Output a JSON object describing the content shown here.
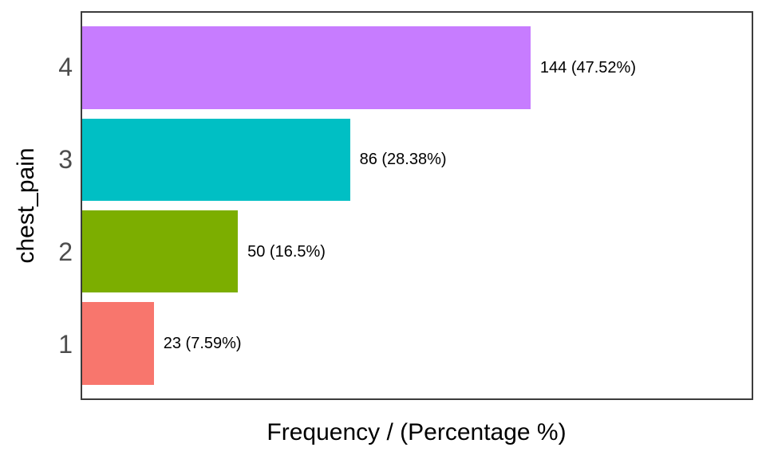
{
  "chart_data": {
    "type": "bar",
    "orientation": "horizontal",
    "title": "",
    "xlabel": "Frequency / (Percentage %)",
    "ylabel": "chest_pain",
    "categories": [
      "4",
      "3",
      "2",
      "1"
    ],
    "values": [
      144,
      86,
      50,
      23
    ],
    "percentages": [
      47.52,
      28.38,
      16.5,
      7.59
    ],
    "bar_labels": [
      "144 (47.52%)",
      "86 (28.38%)",
      "50 (16.5%)",
      "23 (7.59%)"
    ],
    "bar_colors": [
      "#C77CFF",
      "#00BFC4",
      "#7CAE00",
      "#F8766D"
    ],
    "xlim": [
      0,
      215
    ],
    "grid": false,
    "legend": false,
    "bar_width_fraction": 0.9,
    "category_expansion": 0.6
  },
  "colors": {
    "tick_label": "#4d4d4d",
    "axis_title": "#000000",
    "bar_label": "#000000",
    "panel_border": "#3c3c3c",
    "background": "#ffffff"
  }
}
